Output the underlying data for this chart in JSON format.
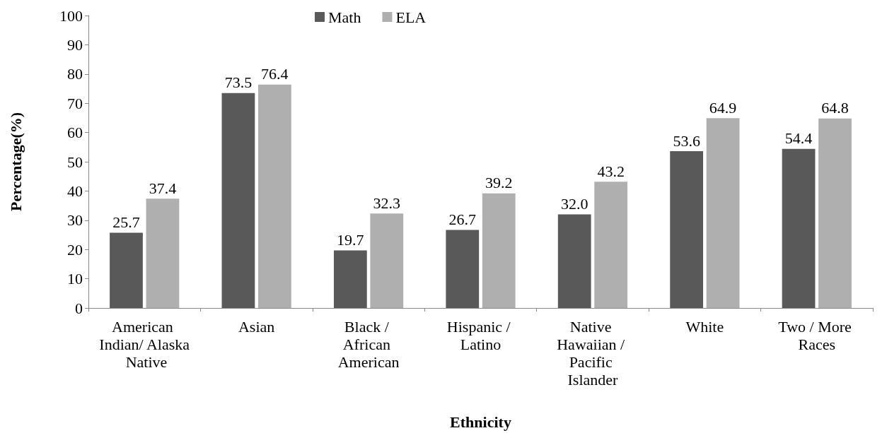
{
  "chart_data": {
    "type": "bar",
    "xlabel": "Ethnicity",
    "ylabel": "Percentage(%)",
    "categories": [
      "American Indian/ Alaska Native",
      "Asian",
      "Black / African American",
      "Hispanic / Latino",
      "Native Hawaiian / Pacific Islander",
      "White",
      "Two / More Races"
    ],
    "series": [
      {
        "name": "Math",
        "color": "#595959",
        "values": [
          25.7,
          73.5,
          19.7,
          26.7,
          32.0,
          53.6,
          54.4
        ],
        "value_labels": [
          "25.7",
          "73.5",
          "19.7",
          "26.7",
          "32.0",
          "53.6",
          "54.4"
        ]
      },
      {
        "name": "ELA",
        "color": "#afafaf",
        "values": [
          37.4,
          76.4,
          32.3,
          39.2,
          43.2,
          64.9,
          64.8
        ],
        "value_labels": [
          "37.4",
          "76.4",
          "32.3",
          "39.2",
          "43.2",
          "64.9",
          "64.8"
        ]
      }
    ],
    "ylim": [
      0,
      100
    ],
    "yticks": [
      0,
      10,
      20,
      30,
      40,
      50,
      60,
      70,
      80,
      90,
      100
    ],
    "grid": false,
    "legend": "top"
  }
}
